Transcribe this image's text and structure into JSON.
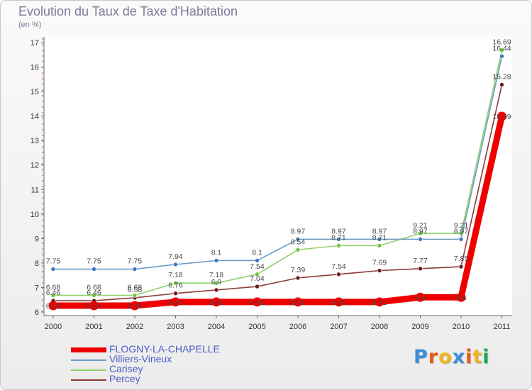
{
  "title": "Evolution du Taux de Taxe d'Habitation",
  "unit_label": "(en %)",
  "logo": {
    "text": "Proxiti",
    "colors": [
      "#3a8fd8",
      "#e85a18",
      "#f0b418",
      "#3a8fd8",
      "#e85a18",
      "#f0b418",
      "#1aa850"
    ]
  },
  "chart_data": {
    "type": "line",
    "title": "Evolution du Taux de Taxe d'Habitation",
    "ylabel": "(en %)",
    "xlabel": "",
    "x": [
      "2000",
      "2001",
      "2002",
      "2003",
      "2004",
      "2005",
      "2006",
      "2007",
      "2008",
      "2009",
      "2010",
      "2011"
    ],
    "ylim": [
      6,
      17
    ],
    "yticks": [
      "6",
      "7",
      "8",
      "9",
      "10",
      "11",
      "12",
      "13",
      "14",
      "15",
      "16",
      "17"
    ],
    "grid": false,
    "legend_position": "bottom-left",
    "series": [
      {
        "name": "FLOGNY-LA-CHAPELLE",
        "color": "#ee0000",
        "emphasis": true,
        "values": [
          6.26,
          6.26,
          6.26,
          6.41,
          6.41,
          6.41,
          6.41,
          6.41,
          6.41,
          6.6,
          6.6,
          13.99
        ],
        "labels": [
          "6.26",
          "6.26",
          "6.26",
          "6.41",
          "6.41",
          "6.41",
          "6.41",
          "6.41",
          "6.41",
          "6.6",
          "6.6",
          "13.99"
        ]
      },
      {
        "name": "Villiers-Vineux",
        "color": "#6c9cc4",
        "marker": "#3a78c0",
        "values": [
          7.75,
          7.75,
          7.75,
          7.94,
          8.1,
          8.1,
          8.97,
          8.97,
          8.97,
          8.97,
          8.97,
          16.44
        ],
        "labels": [
          "7.75",
          "7.75",
          "7.75",
          "7.94",
          "8.1",
          "8.1",
          "8.97",
          "8.97",
          "8.97",
          "8.97",
          "8.97",
          "16.44"
        ]
      },
      {
        "name": "Carisey",
        "color": "#8ed06a",
        "marker": "#6cc43e",
        "values": [
          6.68,
          6.68,
          6.68,
          7.18,
          7.18,
          7.54,
          8.54,
          8.71,
          8.71,
          9.21,
          9.21,
          16.69
        ],
        "labels": [
          "6.68",
          "6.68",
          "6.68",
          "7.18",
          "7.18",
          "7.54",
          "8.54",
          "8.71",
          "8.71",
          "9.21",
          "9.21",
          "16.69"
        ]
      },
      {
        "name": "Percey",
        "color": "#8a3c3c",
        "marker": "#6a1c1c",
        "values": [
          6.46,
          6.46,
          6.58,
          6.76,
          6.9,
          7.04,
          7.39,
          7.54,
          7.69,
          7.77,
          7.85,
          15.28
        ],
        "labels": [
          "6.46",
          "6.46",
          "6.58",
          "6.76",
          "6.9",
          "7.04",
          "7.39",
          "7.54",
          "7.69",
          "7.77",
          "7.85",
          "15.28"
        ]
      }
    ]
  }
}
